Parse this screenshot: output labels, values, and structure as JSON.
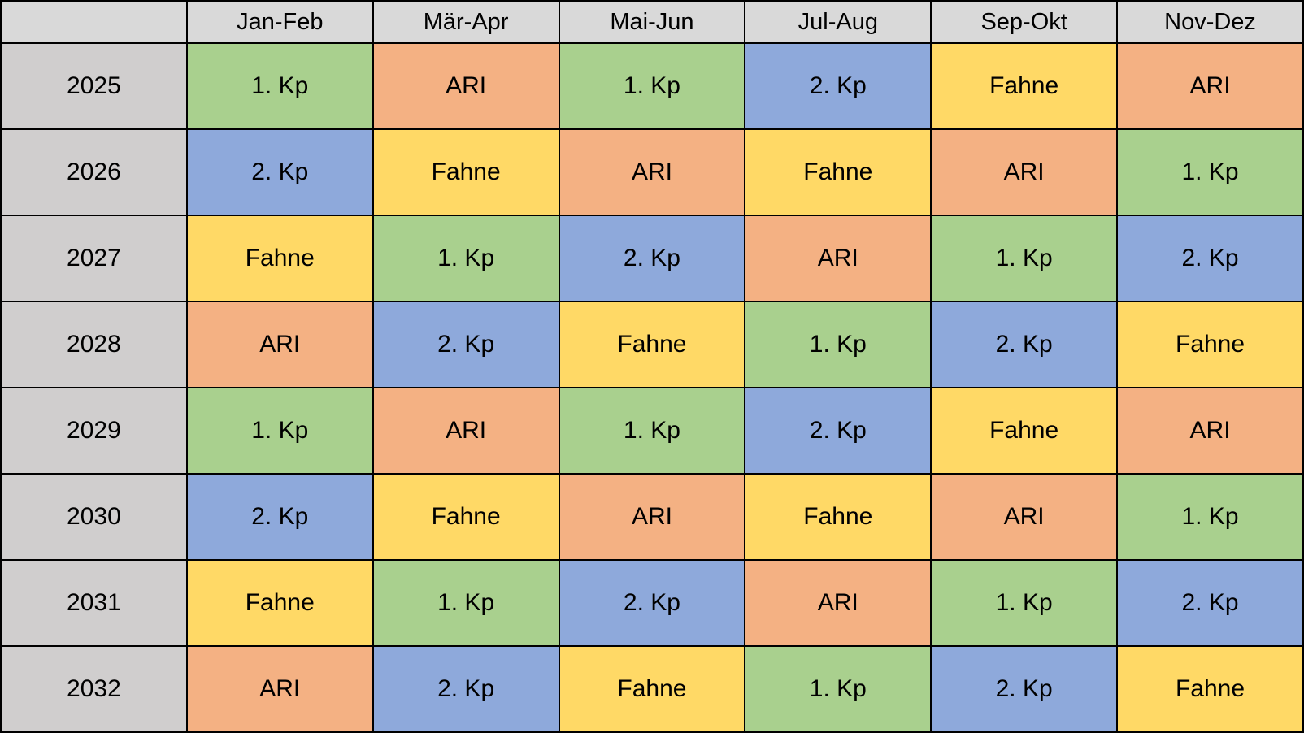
{
  "chart_data": {
    "type": "table",
    "title": "",
    "corner_label": "",
    "columns": [
      "Jan-Feb",
      "Mär-Apr",
      "Mai-Jun",
      "Jul-Aug",
      "Sep-Okt",
      "Nov-Dez"
    ],
    "rows": [
      {
        "year": "2025",
        "cells": [
          {
            "label": "1. Kp",
            "color": "#A9D08E"
          },
          {
            "label": "ARI",
            "color": "#F4B183"
          },
          {
            "label": "1. Kp",
            "color": "#A9D08E"
          },
          {
            "label": "2. Kp",
            "color": "#8EA9DB"
          },
          {
            "label": "Fahne",
            "color": "#FFD966"
          },
          {
            "label": "ARI",
            "color": "#F4B183"
          }
        ]
      },
      {
        "year": "2026",
        "cells": [
          {
            "label": "2. Kp",
            "color": "#8EA9DB"
          },
          {
            "label": "Fahne",
            "color": "#FFD966"
          },
          {
            "label": "ARI",
            "color": "#F4B183"
          },
          {
            "label": "Fahne",
            "color": "#FFD966"
          },
          {
            "label": "ARI",
            "color": "#F4B183"
          },
          {
            "label": "1. Kp",
            "color": "#A9D08E"
          }
        ]
      },
      {
        "year": "2027",
        "cells": [
          {
            "label": "Fahne",
            "color": "#FFD966"
          },
          {
            "label": "1. Kp",
            "color": "#A9D08E"
          },
          {
            "label": "2. Kp",
            "color": "#8EA9DB"
          },
          {
            "label": "ARI",
            "color": "#F4B183"
          },
          {
            "label": "1. Kp",
            "color": "#A9D08E"
          },
          {
            "label": "2. Kp",
            "color": "#8EA9DB"
          }
        ]
      },
      {
        "year": "2028",
        "cells": [
          {
            "label": "ARI",
            "color": "#F4B183"
          },
          {
            "label": "2. Kp",
            "color": "#8EA9DB"
          },
          {
            "label": "Fahne",
            "color": "#FFD966"
          },
          {
            "label": "1. Kp",
            "color": "#A9D08E"
          },
          {
            "label": "2. Kp",
            "color": "#8EA9DB"
          },
          {
            "label": "Fahne",
            "color": "#FFD966"
          }
        ]
      },
      {
        "year": "2029",
        "cells": [
          {
            "label": "1. Kp",
            "color": "#A9D08E"
          },
          {
            "label": "ARI",
            "color": "#F4B183"
          },
          {
            "label": "1. Kp",
            "color": "#A9D08E"
          },
          {
            "label": "2. Kp",
            "color": "#8EA9DB"
          },
          {
            "label": "Fahne",
            "color": "#FFD966"
          },
          {
            "label": "ARI",
            "color": "#F4B183"
          }
        ]
      },
      {
        "year": "2030",
        "cells": [
          {
            "label": "2. Kp",
            "color": "#8EA9DB"
          },
          {
            "label": "Fahne",
            "color": "#FFD966"
          },
          {
            "label": "ARI",
            "color": "#F4B183"
          },
          {
            "label": "Fahne",
            "color": "#FFD966"
          },
          {
            "label": "ARI",
            "color": "#F4B183"
          },
          {
            "label": "1. Kp",
            "color": "#A9D08E"
          }
        ]
      },
      {
        "year": "2031",
        "cells": [
          {
            "label": "Fahne",
            "color": "#FFD966"
          },
          {
            "label": "1. Kp",
            "color": "#A9D08E"
          },
          {
            "label": "2. Kp",
            "color": "#8EA9DB"
          },
          {
            "label": "ARI",
            "color": "#F4B183"
          },
          {
            "label": "1. Kp",
            "color": "#A9D08E"
          },
          {
            "label": "2. Kp",
            "color": "#8EA9DB"
          }
        ]
      },
      {
        "year": "2032",
        "cells": [
          {
            "label": "ARI",
            "color": "#F4B183"
          },
          {
            "label": "2. Kp",
            "color": "#8EA9DB"
          },
          {
            "label": "Fahne",
            "color": "#FFD966"
          },
          {
            "label": "1. Kp",
            "color": "#A9D08E"
          },
          {
            "label": "2. Kp",
            "color": "#8EA9DB"
          },
          {
            "label": "Fahne",
            "color": "#FFD966"
          }
        ]
      }
    ],
    "palette": {
      "1. Kp": "#A9D08E",
      "2. Kp": "#8EA9DB",
      "ARI": "#F4B183",
      "Fahne": "#FFD966"
    },
    "styles": {
      "header_bg": "#D9D9D9",
      "year_bg": "#D0CECE",
      "border_color": "#000000",
      "text_color": "#000000"
    }
  }
}
